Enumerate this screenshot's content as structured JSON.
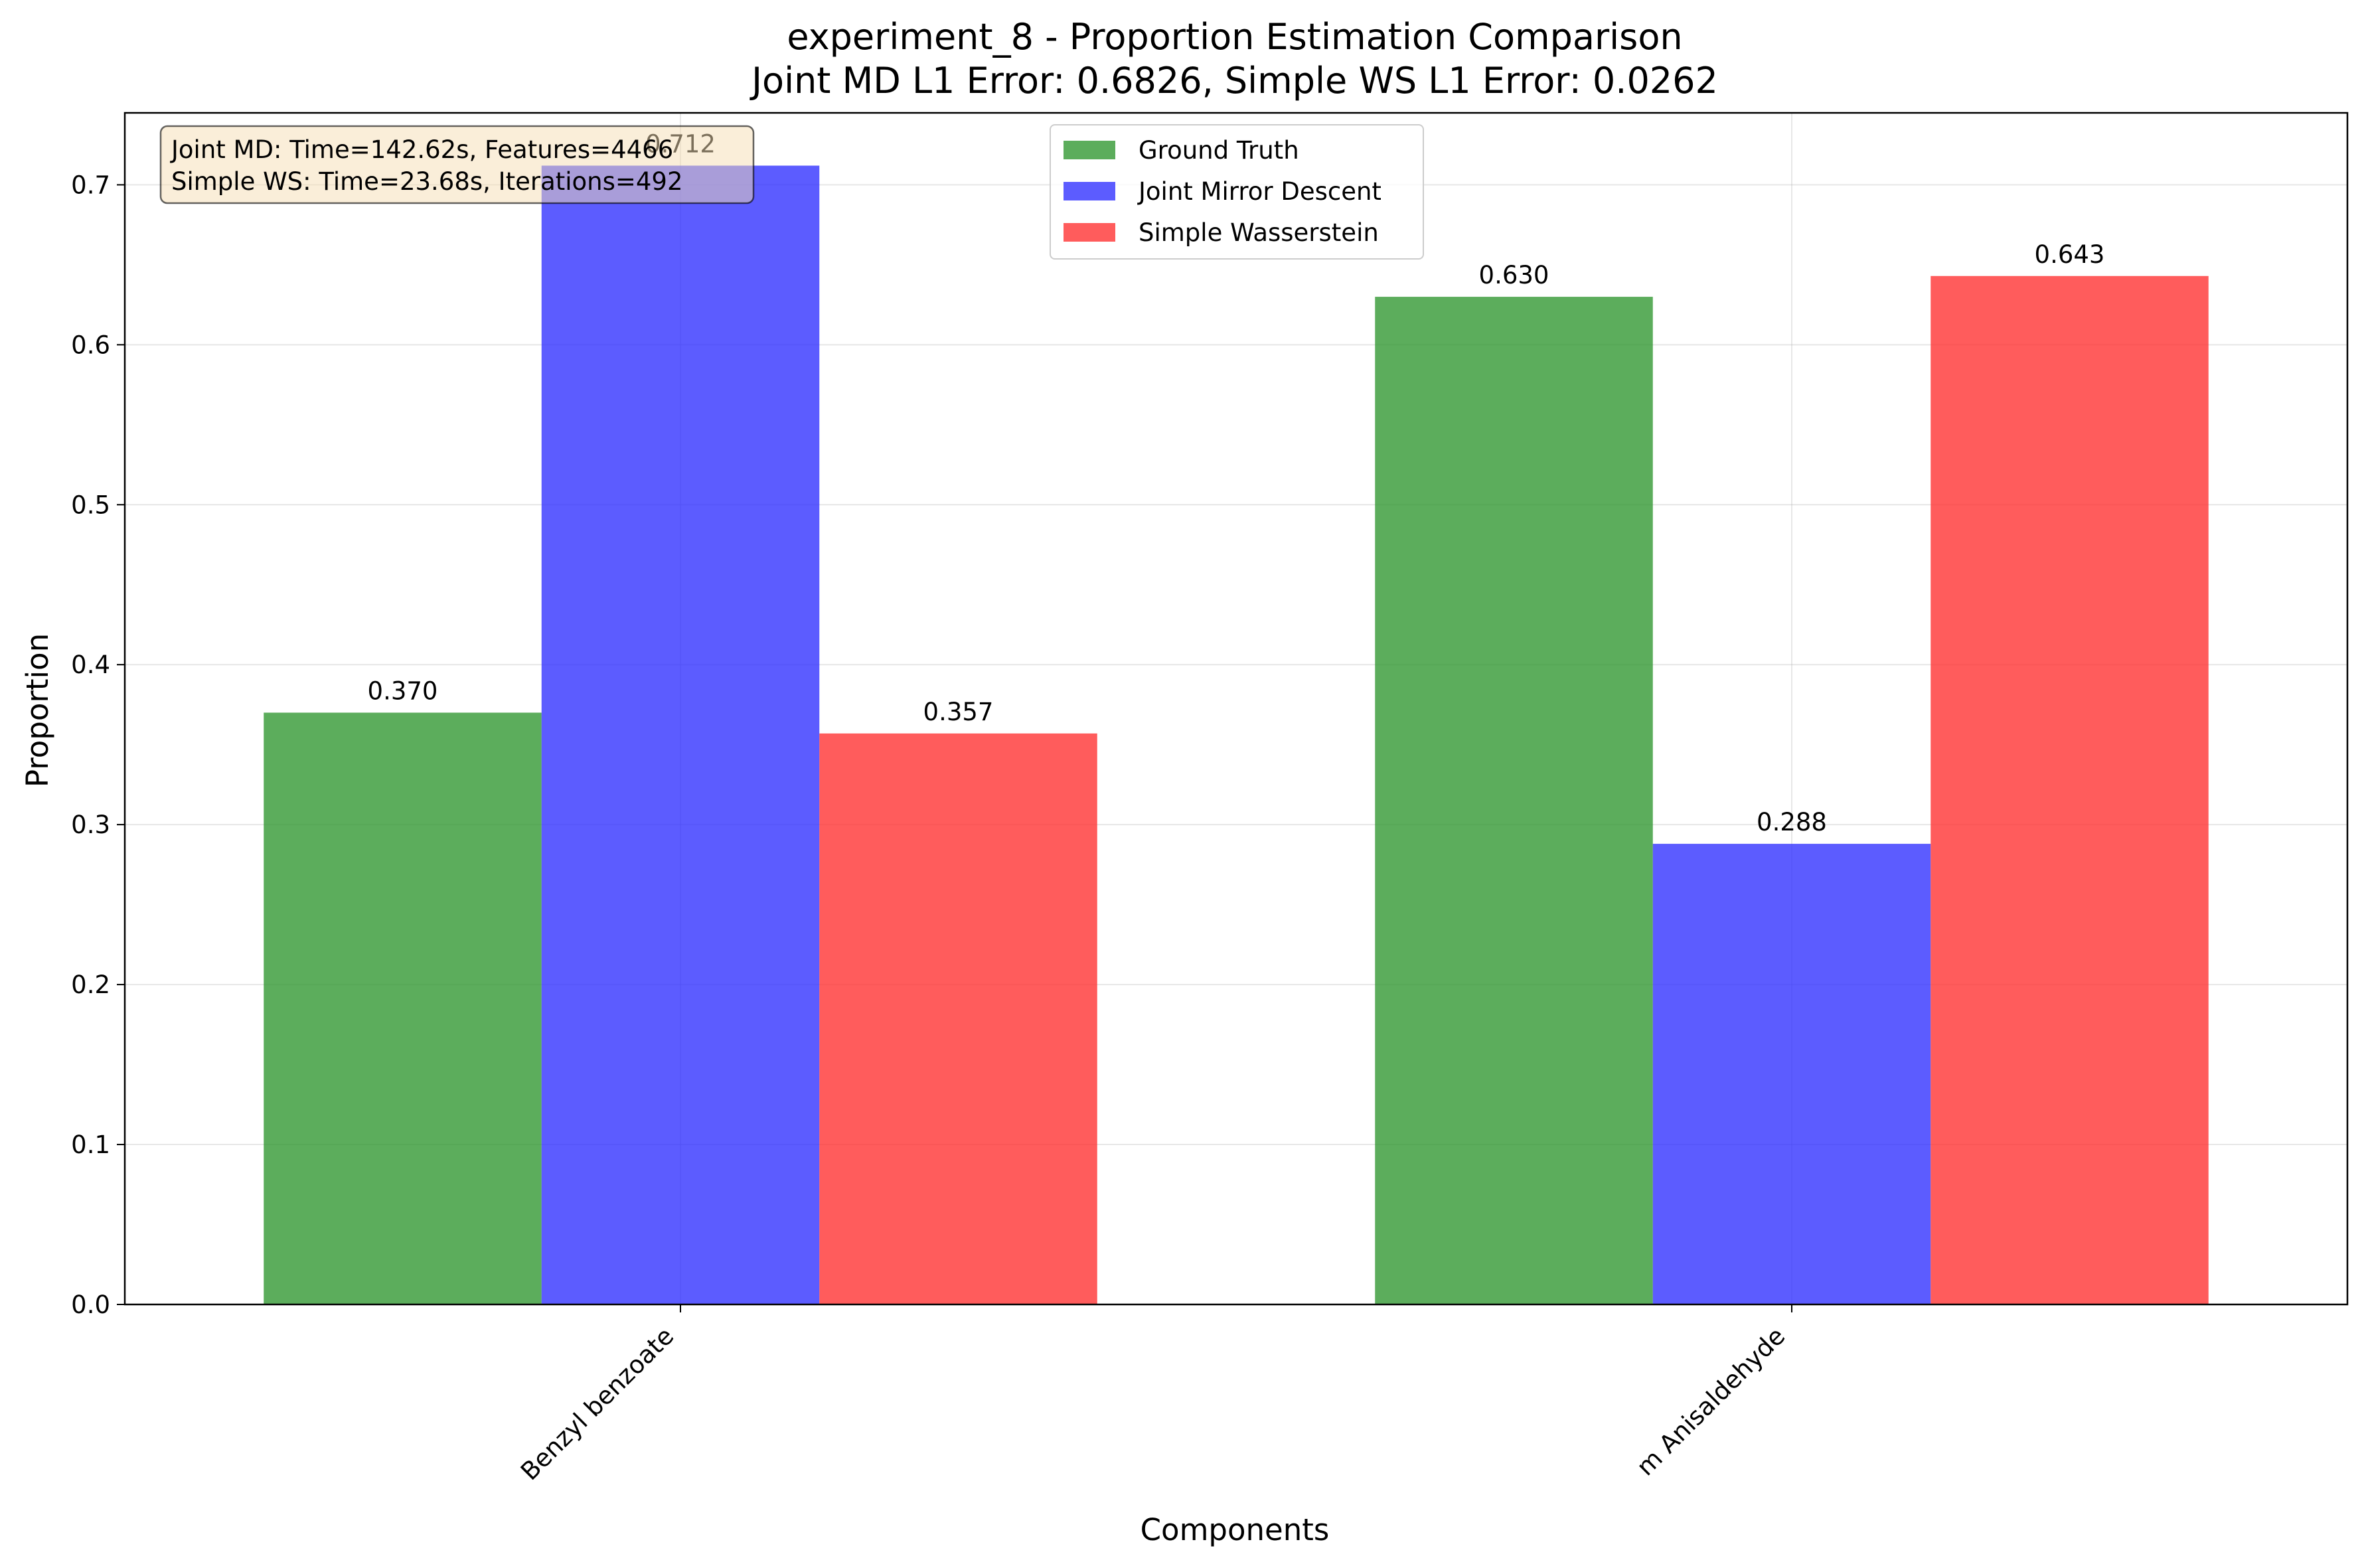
{
  "chart_data": {
    "type": "bar",
    "title_line1": "experiment_8 - Proportion Estimation Comparison",
    "title_line2": "Joint MD L1 Error: 0.6826, Simple WS L1 Error: 0.0262",
    "xlabel": "Components",
    "ylabel": "Proportion",
    "categories": [
      "Benzyl benzoate",
      "m Anisaldehyde"
    ],
    "series": [
      {
        "name": "Ground Truth",
        "color": "#339933",
        "values": [
          0.37,
          0.63
        ],
        "labels": [
          "0.370",
          "0.630"
        ]
      },
      {
        "name": "Joint Mirror Descent",
        "color": "#3333ff",
        "values": [
          0.712,
          0.288
        ],
        "labels": [
          "0.712",
          "0.288"
        ]
      },
      {
        "name": "Simple Wasserstein",
        "color": "#ff3333",
        "values": [
          0.357,
          0.643
        ],
        "labels": [
          "0.357",
          "0.643"
        ]
      }
    ],
    "ylim": [
      0,
      0.745
    ],
    "yticks": [
      "0.0",
      "0.1",
      "0.2",
      "0.3",
      "0.4",
      "0.5",
      "0.6",
      "0.7"
    ],
    "grid": true,
    "legend_position": "top-center",
    "info_box": [
      "Joint MD: Time=142.62s, Features=4466",
      "Simple WS: Time=23.68s, Iterations=492"
    ]
  }
}
